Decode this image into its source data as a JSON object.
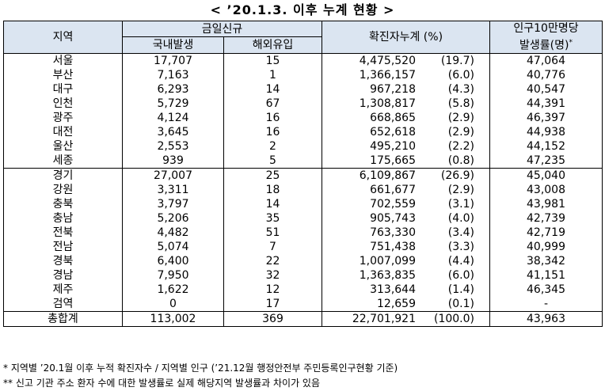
{
  "title": "< ’20.1.3. 이후 누계 현황 >",
  "header": {
    "region": "지역",
    "daily_new": "금일신규",
    "domestic": "국내발생",
    "overseas": "해외유입",
    "cumulative": "확진자누계 (%)",
    "rate_line1": "인구10만명당",
    "rate_line2": "발생률(명)",
    "rate_mark": "*"
  },
  "rows": [
    {
      "region": "서울",
      "domestic": "17,707",
      "overseas": "15",
      "cum": "4,475,520",
      "pct": "(19.7)",
      "rate": "47,064"
    },
    {
      "region": "부산",
      "domestic": "7,163",
      "overseas": "1",
      "cum": "1,366,157",
      "pct": "(6.0)",
      "rate": "40,776"
    },
    {
      "region": "대구",
      "domestic": "6,293",
      "overseas": "14",
      "cum": "967,218",
      "pct": "(4.3)",
      "rate": "40,547"
    },
    {
      "region": "인천",
      "domestic": "5,729",
      "overseas": "67",
      "cum": "1,308,817",
      "pct": "(5.8)",
      "rate": "44,391"
    },
    {
      "region": "광주",
      "domestic": "4,124",
      "overseas": "16",
      "cum": "668,865",
      "pct": "(2.9)",
      "rate": "46,397"
    },
    {
      "region": "대전",
      "domestic": "3,645",
      "overseas": "16",
      "cum": "652,618",
      "pct": "(2.9)",
      "rate": "44,938"
    },
    {
      "region": "울산",
      "domestic": "2,553",
      "overseas": "2",
      "cum": "495,210",
      "pct": "(2.2)",
      "rate": "44,152"
    },
    {
      "region": "세종",
      "domestic": "939",
      "overseas": "5",
      "cum": "175,665",
      "pct": "(0.8)",
      "rate": "47,235"
    },
    {
      "region": "경기",
      "domestic": "27,007",
      "overseas": "25",
      "cum": "6,109,867",
      "pct": "(26.9)",
      "rate": "45,040"
    },
    {
      "region": "강원",
      "domestic": "3,311",
      "overseas": "18",
      "cum": "661,677",
      "pct": "(2.9)",
      "rate": "43,008"
    },
    {
      "region": "충북",
      "domestic": "3,797",
      "overseas": "14",
      "cum": "702,559",
      "pct": "(3.1)",
      "rate": "43,981"
    },
    {
      "region": "충남",
      "domestic": "5,206",
      "overseas": "35",
      "cum": "905,743",
      "pct": "(4.0)",
      "rate": "42,739"
    },
    {
      "region": "전북",
      "domestic": "4,482",
      "overseas": "51",
      "cum": "763,330",
      "pct": "(3.4)",
      "rate": "42,719"
    },
    {
      "region": "전남",
      "domestic": "5,074",
      "overseas": "7",
      "cum": "751,438",
      "pct": "(3.3)",
      "rate": "40,999"
    },
    {
      "region": "경북",
      "domestic": "6,400",
      "overseas": "22",
      "cum": "1,007,099",
      "pct": "(4.4)",
      "rate": "38,342"
    },
    {
      "region": "경남",
      "domestic": "7,950",
      "overseas": "32",
      "cum": "1,363,835",
      "pct": "(6.0)",
      "rate": "41,151"
    },
    {
      "region": "제주",
      "domestic": "1,622",
      "overseas": "12",
      "cum": "313,644",
      "pct": "(1.4)",
      "rate": "46,345"
    },
    {
      "region": "검역",
      "domestic": "0",
      "overseas": "17",
      "cum": "12,659",
      "pct": "(0.1)",
      "rate": "-"
    }
  ],
  "total": {
    "region": "총합계",
    "domestic": "113,002",
    "overseas": "369",
    "cum": "22,701,921",
    "pct": "(100.0)",
    "rate": "43,963"
  },
  "notes": [
    "* 지역별 ’20.1월 이후 누적 확진자수 / 지역별 인구 (’21.12월 행정안전부 주민등록인구현황 기준)",
    "** 신고 기관 주소 환자 수에 대한 발생률로 실제 해당지역 발생률과 차이가 있음"
  ]
}
